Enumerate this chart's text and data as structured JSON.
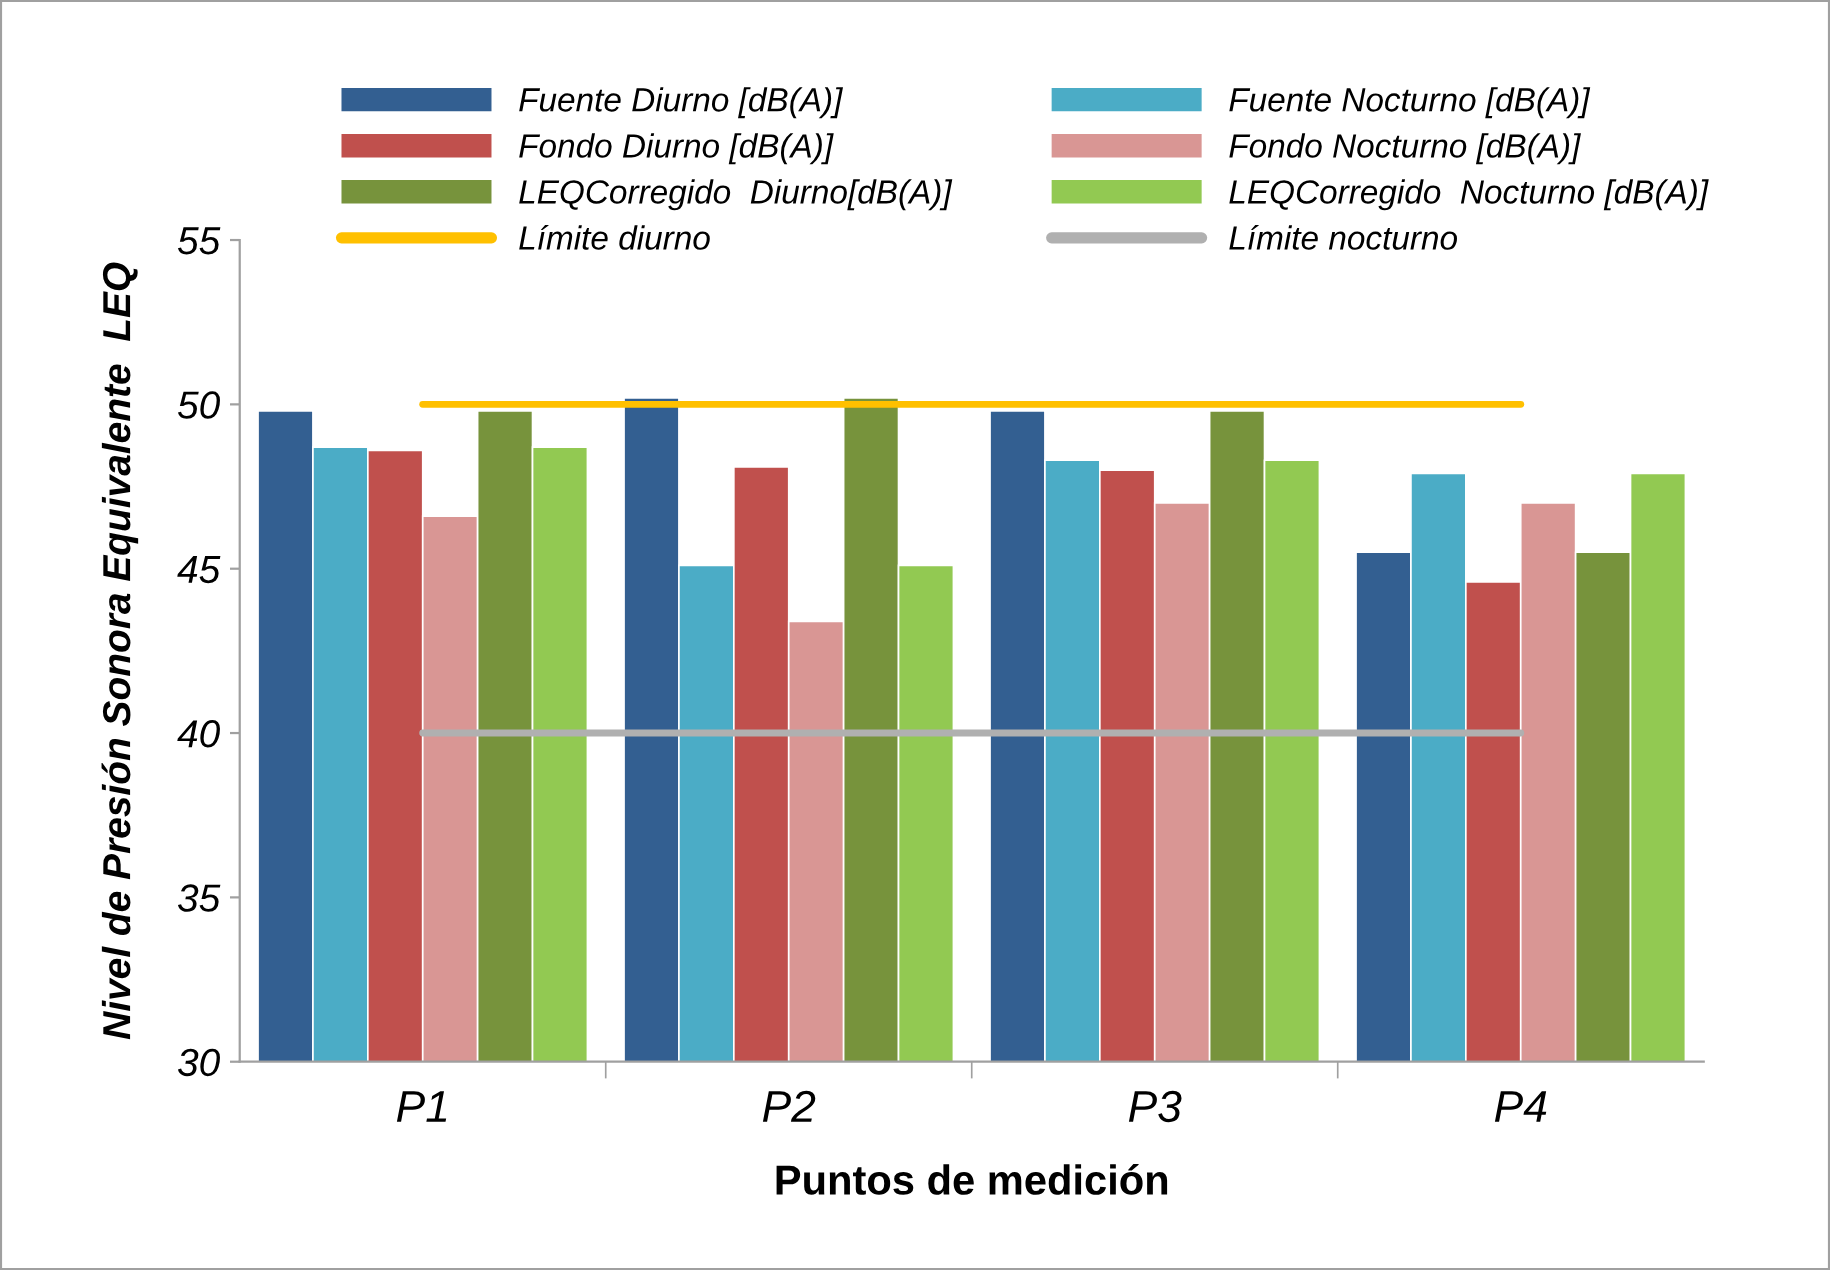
{
  "chart_data": {
    "type": "bar",
    "xlabel": "Puntos de medición",
    "ylabel": "Nivel de Presión Sonora Equivalente  LEQ",
    "categories": [
      "P1",
      "P2",
      "P3",
      "P4"
    ],
    "series": [
      {
        "name": "Fuente Diurno [dB(A)]",
        "color": "#335f91",
        "values": [
          49.8,
          50.2,
          49.8,
          45.5
        ]
      },
      {
        "name": "Fuente Nocturno [dB(A)]",
        "color": "#4bacc6",
        "values": [
          48.7,
          45.1,
          48.3,
          47.9
        ]
      },
      {
        "name": "Fondo Diurno [dB(A)]",
        "color": "#c0504d",
        "values": [
          48.6,
          48.1,
          48.0,
          44.6
        ]
      },
      {
        "name": "Fondo Nocturno [dB(A)]",
        "color": "#d99694",
        "values": [
          46.6,
          43.4,
          47.0,
          47.0
        ]
      },
      {
        "name": "LEQCorregido  Diurno[dB(A)]",
        "color": "#77933c",
        "values": [
          49.8,
          50.2,
          49.8,
          45.5
        ]
      },
      {
        "name": "LEQCorregido  Nocturno [dB(A)]",
        "color": "#92c952",
        "values": [
          48.7,
          45.1,
          48.3,
          47.9
        ]
      },
      {
        "name": "Límite diurno",
        "type": "line",
        "color": "#ffc000",
        "values": [
          50,
          50,
          50,
          50
        ]
      },
      {
        "name": "Límite nocturno",
        "type": "line",
        "color": "#b0b0b0",
        "values": [
          40,
          40,
          40,
          40
        ]
      }
    ],
    "ylim": [
      30,
      55
    ],
    "yticks": [
      30,
      35,
      40,
      45,
      50,
      55
    ],
    "grid": false,
    "legend": "top",
    "marker": "none",
    "line_style": "solid"
  }
}
